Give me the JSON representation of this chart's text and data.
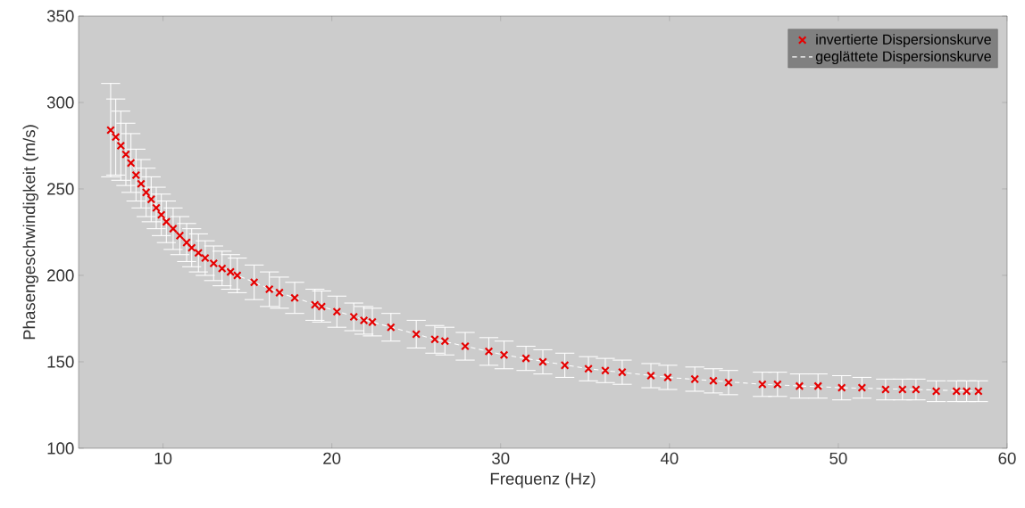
{
  "chart_data": {
    "type": "scatter",
    "xlabel": "Frequenz (Hz)",
    "ylabel": "Phasengeschwindigkeit (m/s)",
    "xlim": [
      5,
      60
    ],
    "ylim": [
      100,
      350
    ],
    "xticks": [
      10,
      20,
      30,
      40,
      50,
      60
    ],
    "yticks": [
      100,
      150,
      200,
      250,
      300,
      350
    ],
    "grid": false,
    "legend": "top right",
    "series": [
      {
        "name": "invertierte Dispersionskurve",
        "marker": "cross",
        "color": "#e60000",
        "x": [
          6.9,
          7.2,
          7.5,
          7.8,
          8.1,
          8.4,
          8.7,
          9.0,
          9.3,
          9.6,
          9.9,
          10.2,
          10.6,
          11.0,
          11.4,
          11.7,
          12.1,
          12.5,
          13.0,
          13.5,
          14.0,
          14.4,
          15.4,
          16.3,
          16.9,
          17.8,
          19.0,
          19.4,
          20.3,
          21.3,
          21.9,
          22.4,
          23.5,
          25.0,
          26.1,
          26.7,
          27.9,
          29.3,
          30.2,
          31.5,
          32.5,
          33.8,
          35.2,
          36.2,
          37.2,
          38.9,
          39.9,
          41.5,
          42.6,
          43.5,
          45.5,
          46.4,
          47.7,
          48.8,
          50.2,
          51.4,
          52.8,
          53.8,
          54.6,
          55.8,
          57.0,
          57.6,
          58.3
        ],
        "values": [
          284,
          280,
          275,
          270,
          265,
          258,
          253,
          248,
          244,
          239,
          235,
          231,
          227,
          223,
          219,
          216,
          213,
          210,
          207,
          204,
          202,
          200,
          196,
          192,
          190,
          187,
          183,
          182,
          179,
          176,
          174,
          173,
          170,
          166,
          163,
          162,
          159,
          156,
          154,
          152,
          150,
          148,
          146,
          145,
          144,
          142,
          141,
          140,
          139,
          138,
          137,
          137,
          136,
          136,
          135,
          135,
          134,
          134,
          134,
          133,
          133,
          133,
          133
        ],
        "errors": [
          27,
          22,
          20,
          18,
          17,
          15,
          14,
          14,
          13,
          12,
          12,
          12,
          12,
          11,
          11,
          11,
          11,
          10,
          10,
          10,
          10,
          10,
          10,
          10,
          9,
          9,
          9,
          9,
          9,
          8,
          8,
          8,
          8,
          8,
          8,
          8,
          8,
          8,
          8,
          7,
          7,
          7,
          7,
          7,
          7,
          7,
          7,
          7,
          7,
          7,
          7,
          7,
          7,
          7,
          7,
          6,
          6,
          6,
          6,
          6,
          6,
          6,
          6
        ]
      },
      {
        "name": "geglättete Dispersionskurve",
        "type": "line",
        "marker": "none",
        "line_style": "dashed",
        "color": "#ffffff",
        "x": [
          6.9,
          8.1,
          9.3,
          10.6,
          12.1,
          14.4,
          16.9,
          19.4,
          22.4,
          26.1,
          30.2,
          35.2,
          39.9,
          45.5,
          50.2,
          54.6,
          58.3
        ],
        "values": [
          284,
          265,
          244,
          227,
          213,
          200,
          190,
          182,
          173,
          163,
          154,
          146,
          141,
          137,
          135,
          134,
          133
        ]
      }
    ]
  }
}
